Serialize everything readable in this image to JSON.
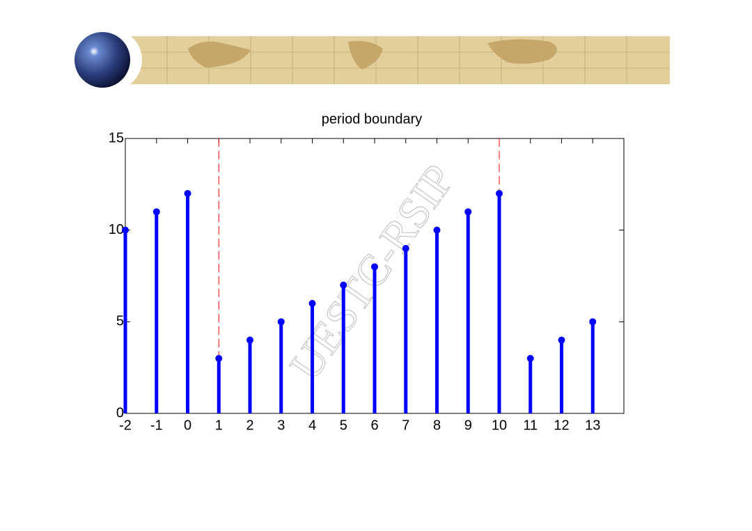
{
  "chart_data": {
    "type": "stem",
    "title": "period boundary",
    "watermark": "UESTC-RSIP",
    "x": [
      -2,
      -1,
      0,
      1,
      2,
      3,
      4,
      5,
      6,
      7,
      8,
      9,
      10,
      11,
      12,
      13
    ],
    "values": [
      10,
      11,
      12,
      3,
      4,
      5,
      6,
      7,
      8,
      9,
      10,
      11,
      12,
      3,
      4,
      5
    ],
    "color": "#0000ff",
    "boundaries": [
      1,
      10
    ],
    "boundary_color": "#ff0000",
    "xlim": [
      -2,
      14
    ],
    "xticks": [
      -2,
      -1,
      0,
      1,
      2,
      3,
      4,
      5,
      6,
      7,
      8,
      9,
      10,
      11,
      12,
      13
    ],
    "ylim": [
      0,
      15
    ],
    "yticks": [
      0,
      5,
      10,
      15
    ]
  }
}
